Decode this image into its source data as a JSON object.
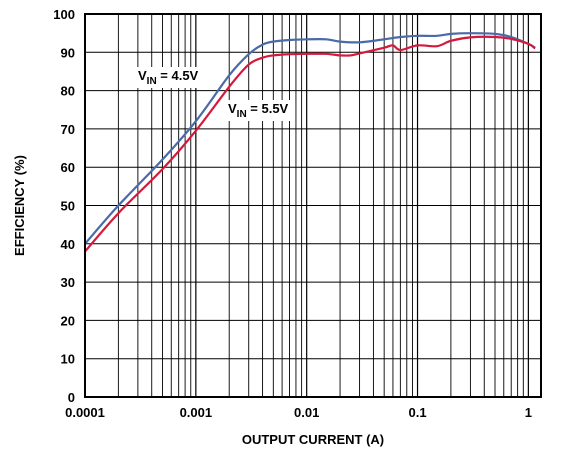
{
  "chart_data": {
    "type": "line",
    "title": "",
    "xlabel": "OUTPUT CURRENT (A)",
    "ylabel": "EFFICIENCY (%)",
    "x_scale": "log",
    "xlim": [
      0.0001,
      1.3
    ],
    "ylim": [
      0,
      100
    ],
    "x_ticks": [
      "0.0001",
      "0.001",
      "0.01",
      "0.1",
      "1"
    ],
    "y_ticks": [
      "0",
      "10",
      "20",
      "30",
      "40",
      "50",
      "60",
      "70",
      "80",
      "90",
      "100"
    ],
    "grid": true,
    "series": [
      {
        "name": "VIN = 4.5V",
        "label_main": "V",
        "label_sub": "IN",
        "label_rest": " = 4.5V",
        "color": "#4a6aa8",
        "x": [
          0.0001,
          0.0002,
          0.0005,
          0.001,
          0.002,
          0.003,
          0.004,
          0.005,
          0.007,
          0.01,
          0.015,
          0.02,
          0.03,
          0.05,
          0.07,
          0.1,
          0.15,
          0.2,
          0.3,
          0.5,
          0.7,
          1.0,
          1.15
        ],
        "y": [
          40,
          50,
          62,
          72,
          84,
          89.5,
          92,
          92.8,
          93.2,
          93.4,
          93.4,
          92.8,
          92.6,
          93.4,
          94,
          94.3,
          94.3,
          94.8,
          95,
          94.8,
          94,
          92.2,
          91.2
        ]
      },
      {
        "name": "VIN = 5.5V",
        "label_main": "V",
        "label_sub": "IN",
        "label_rest": " = 5.5V",
        "color": "#d4193c",
        "x": [
          0.0001,
          0.0002,
          0.0005,
          0.001,
          0.002,
          0.003,
          0.004,
          0.005,
          0.007,
          0.01,
          0.015,
          0.02,
          0.025,
          0.03,
          0.05,
          0.06,
          0.07,
          0.1,
          0.15,
          0.2,
          0.3,
          0.5,
          0.7,
          1.0,
          1.15
        ],
        "y": [
          38,
          48,
          59.5,
          69.5,
          81,
          86.8,
          88.6,
          89.2,
          89.5,
          89.6,
          89.6,
          89.2,
          89.2,
          89.7,
          91.2,
          91.8,
          90.6,
          91.8,
          91.6,
          93,
          93.9,
          94,
          93.5,
          92.2,
          91
        ]
      }
    ]
  }
}
